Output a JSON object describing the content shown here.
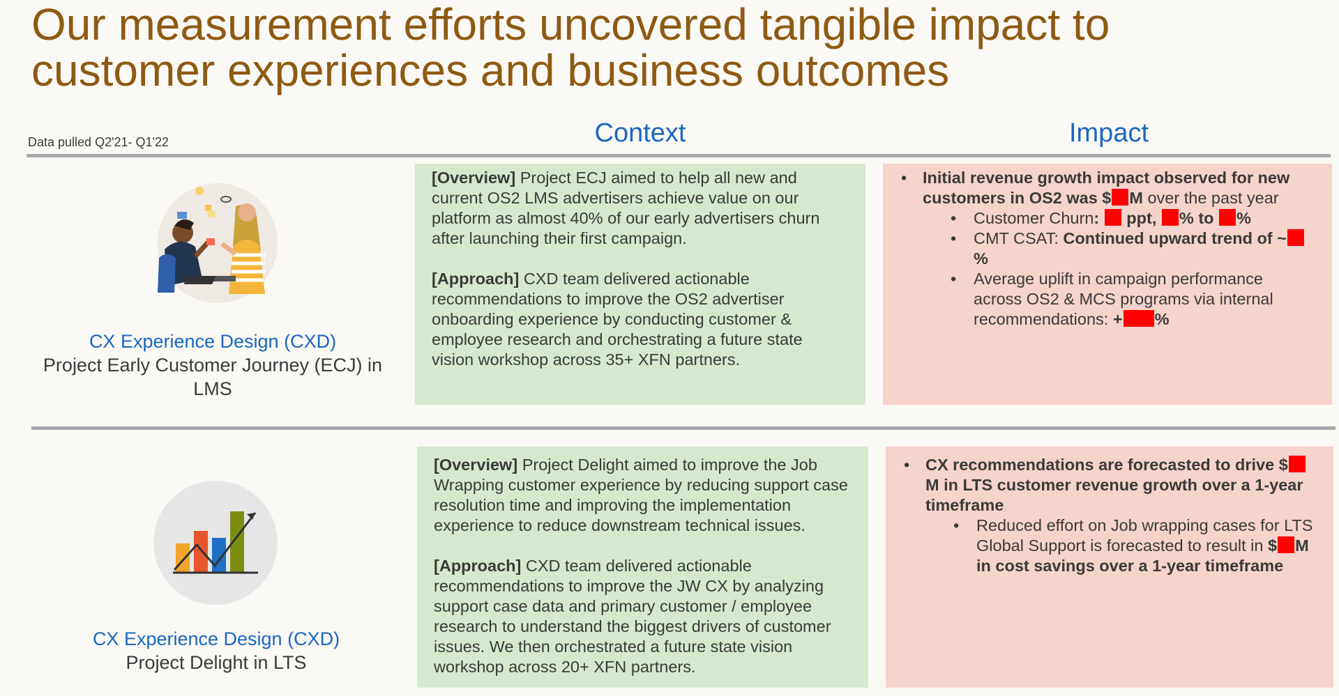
{
  "slide": {
    "title": "Our measurement efforts uncovered tangible impact to customer experiences and business outcomes",
    "data_note": "Data pulled Q2'21- Q1'22",
    "col_context": "Context",
    "col_impact": "Impact"
  },
  "colors": {
    "title": "#8e5a12",
    "heading_blue": "#1a66c0",
    "context_bg": "#d6e9cf",
    "impact_bg": "#f6d3cb",
    "redaction": "#ff0000",
    "rule": "#a8a9ad"
  },
  "projects": [
    {
      "org": "CX Experience Design (CXD)",
      "name": "Project Early Customer Journey (ECJ) in LMS",
      "illustration": "people-collaborating-illustration",
      "overview_tag": "[Overview]",
      "overview": " Project ECJ aimed to help all new and current OS2 LMS advertisers achieve value on our platform as almost 40% of our early advertisers churn after launching their first campaign.",
      "approach_tag": "[Approach]",
      "approach": " CXD team delivered actionable recommendations to improve the OS2 advertiser onboarding experience by conducting customer & employee research and orchestrating a future state vision workshop across 35+ XFN partners.",
      "impact": {
        "headline_a": "Initial revenue growth impact observed for new customers in OS2 was $",
        "headline_b": "M",
        "headline_c": " over the past year",
        "churn_label": "Customer Churn",
        "churn_colon": ": ",
        "churn_ppt": " ppt, ",
        "churn_to": "% to ",
        "churn_pct": "%",
        "csat_label": "CMT CSAT: ",
        "csat_bold": "Continued upward trend of ~",
        "csat_pct": "%",
        "uplift_text": "Average uplift in campaign performance across OS2 & MCS programs via internal recommendations: ",
        "uplift_plus": "+",
        "uplift_pct": "%"
      }
    },
    {
      "org": "CX Experience Design (CXD)",
      "name": "Project Delight in LTS",
      "illustration": "bar-chart-growth-illustration",
      "overview_tag": "[Overview]",
      "overview": " Project Delight aimed to improve the Job Wrapping customer experience by reducing support case resolution time and improving the implementation experience to reduce downstream technical issues.",
      "approach_tag": "[Approach]",
      "approach": " CXD team delivered actionable recommendations to improve the JW CX by analyzing support case data and primary customer / employee research to understand the biggest drivers of customer issues. We then orchestrated a future state vision workshop across 20+ XFN partners.",
      "impact": {
        "headline_a": "CX recommendations are forecasted to drive $",
        "headline_b": "M in LTS customer revenue growth over a 1-year timeframe",
        "sub_text": "Reduced effort on Job wrapping cases for LTS Global Support is forecasted to result in ",
        "sub_bold_a": "$",
        "sub_bold_b": "M in cost savings over a 1-year timeframe"
      }
    }
  ]
}
